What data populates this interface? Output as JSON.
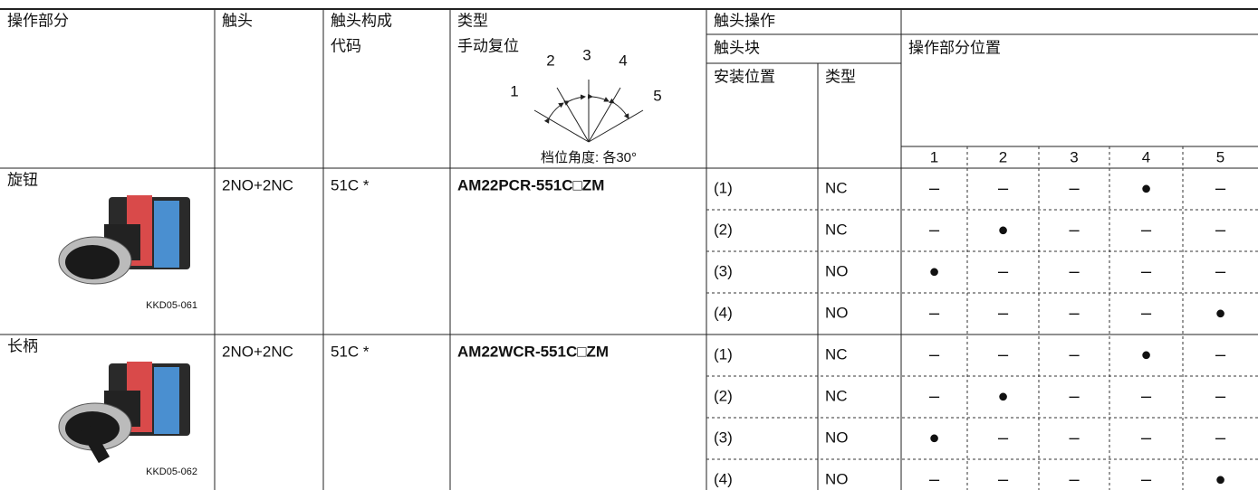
{
  "header": {
    "operation": "操作部分",
    "contact": "触头",
    "contact_code": [
      "触头构成",
      "代码"
    ],
    "type": [
      "类型",
      "手动复位"
    ],
    "contact_operation": "触头操作",
    "contact_block": "触头块",
    "mount_position": "安装位置",
    "block_type": "类型",
    "operator_position": "操作部分位置",
    "positions": [
      "1",
      "2",
      "3",
      "4",
      "5"
    ],
    "diagram": {
      "labels": [
        "1",
        "2",
        "3",
        "4",
        "5"
      ],
      "caption": "档位角度: 各30°"
    }
  },
  "groups": [
    {
      "operation": "旋钮",
      "image_caption": "KKD05-061",
      "contact": "2NO+2NC",
      "code": "51C *",
      "model": "AM22PCR-551C□ZM",
      "rows": [
        {
          "mount": "(1)",
          "type": "NC",
          "states": [
            "–",
            "–",
            "–",
            "●",
            "–"
          ]
        },
        {
          "mount": "(2)",
          "type": "NC",
          "states": [
            "–",
            "●",
            "–",
            "–",
            "–"
          ]
        },
        {
          "mount": "(3)",
          "type": "NO",
          "states": [
            "●",
            "–",
            "–",
            "–",
            "–"
          ]
        },
        {
          "mount": "(4)",
          "type": "NO",
          "states": [
            "–",
            "–",
            "–",
            "–",
            "●"
          ]
        }
      ]
    },
    {
      "operation": "长柄",
      "image_caption": "KKD05-062",
      "contact": "2NO+2NC",
      "code": "51C *",
      "model": "AM22WCR-551C□ZM",
      "rows": [
        {
          "mount": "(1)",
          "type": "NC",
          "states": [
            "–",
            "–",
            "–",
            "●",
            "–"
          ]
        },
        {
          "mount": "(2)",
          "type": "NC",
          "states": [
            "–",
            "●",
            "–",
            "–",
            "–"
          ]
        },
        {
          "mount": "(3)",
          "type": "NO",
          "states": [
            "●",
            "–",
            "–",
            "–",
            "–"
          ]
        },
        {
          "mount": "(4)",
          "type": "NO",
          "states": [
            "–",
            "–",
            "–",
            "–",
            "●"
          ]
        }
      ]
    }
  ]
}
